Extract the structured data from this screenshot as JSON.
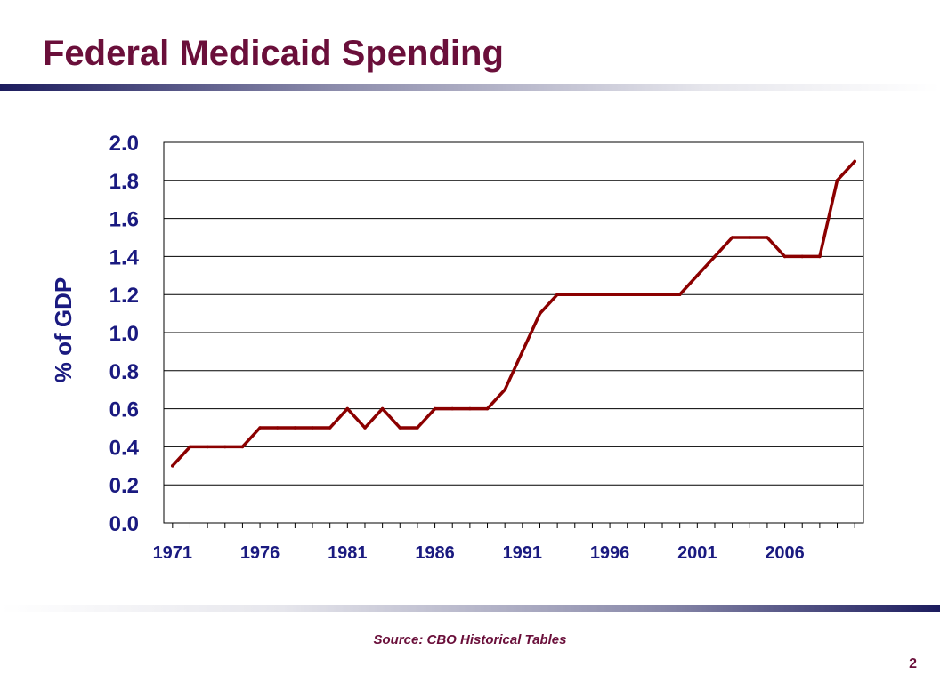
{
  "slide": {
    "title": "Federal Medicaid Spending",
    "source": "Source:  CBO Historical  Tables",
    "page_number": "2"
  },
  "colors": {
    "title": "#6a0f3a",
    "axis_text": "#1a1a80",
    "line": "#8b0000",
    "rule_dark": "#1c1c5e"
  },
  "chart_data": {
    "type": "line",
    "title": "",
    "xlabel": "",
    "ylabel": "% of GDP",
    "ylim": [
      0,
      2.0
    ],
    "yticks": [
      "0.0",
      "0.2",
      "0.4",
      "0.6",
      "0.8",
      "1.0",
      "1.2",
      "1.4",
      "1.6",
      "1.8",
      "2.0"
    ],
    "xlim": [
      1970.5,
      2010.5
    ],
    "xticks": [
      "1971",
      "1976",
      "1981",
      "1986",
      "1991",
      "1996",
      "2001",
      "2006"
    ],
    "grid": "horizontal",
    "legend": "none",
    "series": [
      {
        "x": [
          1971,
          1972,
          1973,
          1974,
          1975,
          1976,
          1977,
          1978,
          1979,
          1980,
          1981,
          1982,
          1983,
          1984,
          1985,
          1986,
          1987,
          1988,
          1989,
          1990,
          1991,
          1992,
          1993,
          1994,
          1995,
          1996,
          1997,
          1998,
          1999,
          2000,
          2001,
          2002,
          2003,
          2004,
          2005,
          2006,
          2007,
          2008,
          2009,
          2010
        ],
        "values": [
          0.3,
          0.4,
          0.4,
          0.4,
          0.4,
          0.5,
          0.5,
          0.5,
          0.5,
          0.5,
          0.6,
          0.5,
          0.6,
          0.5,
          0.5,
          0.6,
          0.6,
          0.6,
          0.6,
          0.7,
          0.9,
          1.1,
          1.2,
          1.2,
          1.2,
          1.2,
          1.2,
          1.2,
          1.2,
          1.2,
          1.3,
          1.4,
          1.5,
          1.5,
          1.5,
          1.4,
          1.4,
          1.4,
          1.8,
          1.9
        ]
      }
    ]
  }
}
